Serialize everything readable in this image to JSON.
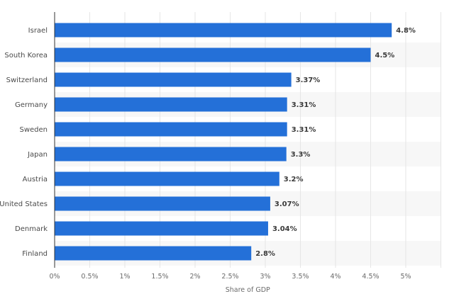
{
  "chart_data": {
    "type": "bar",
    "orientation": "horizontal",
    "title": "",
    "xlabel": "Share of GDP",
    "ylabel": "",
    "categories": [
      "Israel",
      "South Korea",
      "Switzerland",
      "Germany",
      "Sweden",
      "Japan",
      "Austria",
      "United States",
      "Denmark",
      "Finland"
    ],
    "values": [
      4.8,
      4.5,
      3.37,
      3.31,
      3.31,
      3.3,
      3.2,
      3.07,
      3.04,
      2.8
    ],
    "value_labels": [
      "4.8%",
      "4.5%",
      "3.37%",
      "3.31%",
      "3.31%",
      "3.3%",
      "3.2%",
      "3.07%",
      "3.04%",
      "2.8%"
    ],
    "xlim": [
      0,
      5.5
    ],
    "xticks": [
      0,
      0.5,
      1,
      1.5,
      2,
      2.5,
      3,
      3.5,
      4,
      4.5,
      5
    ],
    "xtick_labels": [
      "0%",
      "0.5%",
      "1%",
      "1.5%",
      "2%",
      "2.5%",
      "3%",
      "3.5%",
      "4%",
      "4.5%",
      "5%"
    ],
    "grid": true,
    "legend": "none",
    "colors": {
      "bar": "#2470d8",
      "grid": "#e6e6e6",
      "row_shade": "#f7f7f7",
      "axis": "#333333"
    }
  }
}
